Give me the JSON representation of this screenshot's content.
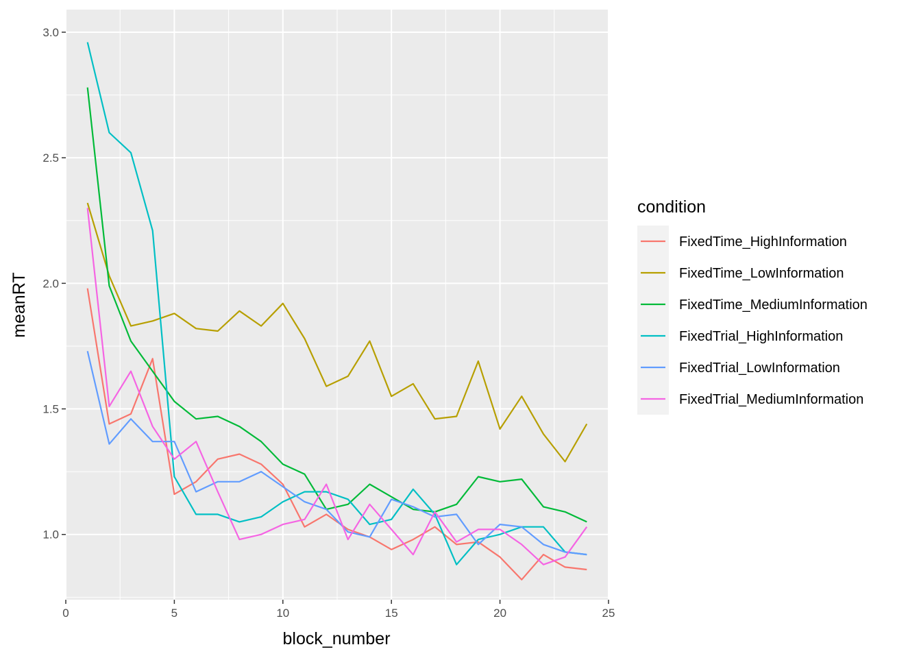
{
  "chart_data": {
    "type": "line",
    "title": "",
    "xlabel": "block_number",
    "ylabel": "meanRT",
    "xlim": [
      0,
      25
    ],
    "ylim": [
      0.74,
      3.09
    ],
    "x_ticks": [
      0,
      5,
      10,
      15,
      20,
      25
    ],
    "y_ticks": [
      1.0,
      1.5,
      2.0,
      2.5,
      3.0
    ],
    "y_tick_labels": [
      "1.0",
      "1.5",
      "2.0",
      "2.5",
      "3.0"
    ],
    "grid": true,
    "legend": {
      "title": "condition",
      "placement": "right"
    },
    "x": [
      1,
      2,
      3,
      4,
      5,
      6,
      7,
      8,
      9,
      10,
      11,
      12,
      13,
      14,
      15,
      16,
      17,
      18,
      19,
      20,
      21,
      22,
      23,
      24
    ],
    "series": [
      {
        "name": "FixedTime_HighInformation",
        "color": "#F8766D",
        "values": [
          1.98,
          1.44,
          1.48,
          1.7,
          1.16,
          1.21,
          1.3,
          1.32,
          1.28,
          1.2,
          1.03,
          1.08,
          1.02,
          0.99,
          0.94,
          0.98,
          1.03,
          0.96,
          0.97,
          0.91,
          0.82,
          0.92,
          0.87,
          0.86
        ]
      },
      {
        "name": "FixedTime_LowInformation",
        "color": "#B79F00",
        "values": [
          2.32,
          2.03,
          1.83,
          1.85,
          1.88,
          1.82,
          1.81,
          1.89,
          1.83,
          1.92,
          1.78,
          1.59,
          1.63,
          1.77,
          1.55,
          1.6,
          1.46,
          1.47,
          1.69,
          1.42,
          1.55,
          1.4,
          1.29,
          1.44
        ]
      },
      {
        "name": "FixedTime_MediumInformation",
        "color": "#00BA38",
        "values": [
          2.78,
          1.99,
          1.77,
          1.65,
          1.53,
          1.46,
          1.47,
          1.43,
          1.37,
          1.28,
          1.24,
          1.1,
          1.12,
          1.2,
          1.15,
          1.1,
          1.09,
          1.12,
          1.23,
          1.21,
          1.22,
          1.11,
          1.09,
          1.05
        ]
      },
      {
        "name": "FixedTrial_HighInformation",
        "color": "#00BFC4",
        "values": [
          2.96,
          2.6,
          2.52,
          2.21,
          1.23,
          1.08,
          1.08,
          1.05,
          1.07,
          1.13,
          1.17,
          1.17,
          1.14,
          1.04,
          1.06,
          1.18,
          1.08,
          0.88,
          0.98,
          1.0,
          1.03,
          1.03,
          0.93,
          0.92
        ]
      },
      {
        "name": "FixedTrial_LowInformation",
        "color": "#619CFF",
        "values": [
          1.73,
          1.36,
          1.46,
          1.37,
          1.37,
          1.17,
          1.21,
          1.21,
          1.25,
          1.19,
          1.13,
          1.1,
          1.01,
          0.99,
          1.14,
          1.11,
          1.07,
          1.08,
          0.96,
          1.04,
          1.03,
          0.96,
          0.93,
          0.92
        ]
      },
      {
        "name": "FixedTrial_MediumInformation",
        "color": "#F564E3",
        "values": [
          2.3,
          1.51,
          1.65,
          1.43,
          1.3,
          1.37,
          1.17,
          0.98,
          1.0,
          1.04,
          1.06,
          1.2,
          0.98,
          1.12,
          1.02,
          0.92,
          1.09,
          0.97,
          1.02,
          1.02,
          0.96,
          0.88,
          0.91,
          1.03
        ]
      }
    ]
  }
}
